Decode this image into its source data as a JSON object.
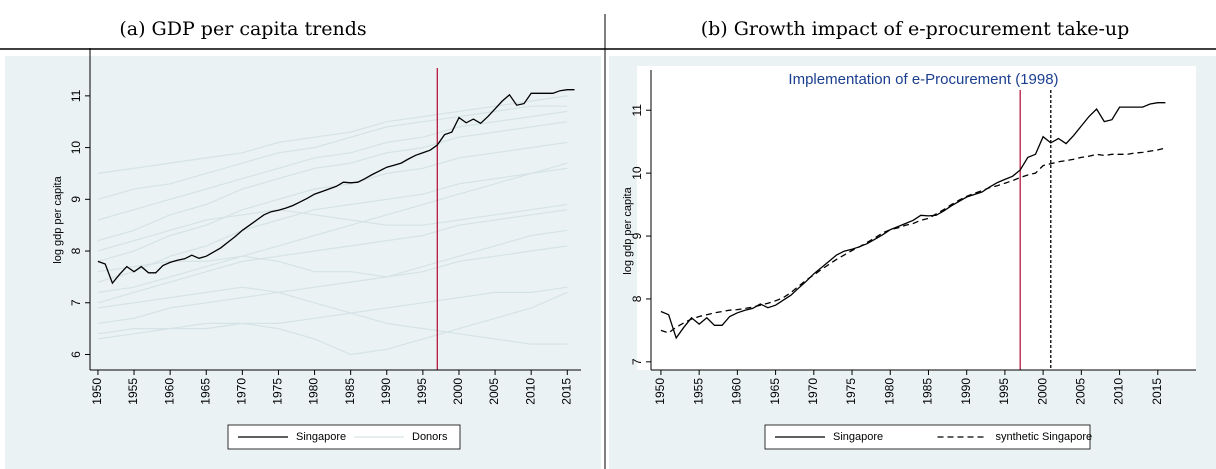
{
  "chart_data": [
    {
      "type": "line",
      "title": "(a) GDP per capita trends",
      "ylabel": "log gdp per capita",
      "x": [
        1950,
        1951,
        1952,
        1953,
        1954,
        1955,
        1956,
        1957,
        1958,
        1959,
        1960,
        1961,
        1962,
        1963,
        1964,
        1965,
        1966,
        1967,
        1968,
        1969,
        1970,
        1971,
        1972,
        1973,
        1974,
        1975,
        1976,
        1977,
        1978,
        1979,
        1980,
        1981,
        1982,
        1983,
        1984,
        1985,
        1986,
        1987,
        1988,
        1989,
        1990,
        1991,
        1992,
        1993,
        1994,
        1995,
        1996,
        1997,
        1998,
        1999,
        2000,
        2001,
        2002,
        2003,
        2004,
        2005,
        2006,
        2007,
        2008,
        2009,
        2010,
        2011,
        2012,
        2013,
        2014,
        2015,
        2016
      ],
      "series": [
        {
          "name": "Singapore",
          "color": "#000000",
          "values": [
            7.8,
            7.75,
            7.38,
            7.55,
            7.7,
            7.6,
            7.7,
            7.58,
            7.58,
            7.72,
            7.78,
            7.82,
            7.85,
            7.92,
            7.86,
            7.9,
            7.98,
            8.06,
            8.17,
            8.28,
            8.4,
            8.5,
            8.6,
            8.7,
            8.76,
            8.79,
            8.83,
            8.88,
            8.95,
            9.02,
            9.1,
            9.15,
            9.2,
            9.25,
            9.33,
            9.32,
            9.33,
            9.4,
            9.48,
            9.55,
            9.62,
            9.66,
            9.7,
            9.78,
            9.85,
            9.9,
            9.95,
            10.05,
            10.25,
            10.3,
            10.58,
            10.48,
            10.55,
            10.47,
            10.6,
            10.75,
            10.9,
            11.02,
            10.82,
            10.85,
            11.05,
            11.05,
            11.05,
            11.05,
            11.1,
            11.12,
            11.12
          ]
        }
      ],
      "donors": {
        "name": "Donors",
        "color": "#d6e3e6",
        "x": [
          1950,
          1955,
          1960,
          1965,
          1970,
          1975,
          1980,
          1985,
          1990,
          1995,
          2000,
          2005,
          2010,
          2015
        ],
        "lines": [
          [
            6.3,
            6.4,
            6.5,
            6.5,
            6.6,
            6.6,
            6.7,
            6.8,
            6.9,
            7.0,
            7.1,
            7.2,
            7.2,
            7.3
          ],
          [
            6.6,
            6.7,
            6.9,
            7.0,
            7.1,
            7.2,
            7.3,
            7.4,
            7.5,
            7.6,
            7.8,
            7.9,
            8.0,
            8.1
          ],
          [
            7.0,
            7.2,
            7.4,
            7.6,
            7.8,
            7.9,
            8.0,
            8.1,
            8.2,
            8.3,
            8.5,
            8.6,
            8.7,
            8.8
          ],
          [
            7.4,
            7.6,
            7.9,
            8.1,
            8.4,
            8.6,
            8.8,
            8.9,
            9.0,
            9.1,
            9.3,
            9.4,
            9.5,
            9.6
          ],
          [
            7.8,
            8.0,
            8.3,
            8.5,
            8.8,
            9.0,
            9.2,
            9.3,
            9.5,
            9.6,
            9.8,
            9.9,
            10.0,
            10.1
          ],
          [
            8.2,
            8.4,
            8.7,
            8.9,
            9.2,
            9.4,
            9.6,
            9.7,
            9.9,
            10.0,
            10.2,
            10.3,
            10.4,
            10.5
          ],
          [
            8.6,
            8.8,
            9.0,
            9.2,
            9.4,
            9.6,
            9.8,
            9.9,
            10.1,
            10.2,
            10.4,
            10.5,
            10.6,
            10.7
          ],
          [
            9.0,
            9.2,
            9.3,
            9.5,
            9.7,
            9.9,
            10.0,
            10.2,
            10.4,
            10.5,
            10.6,
            10.7,
            10.8,
            10.8
          ],
          [
            9.5,
            9.6,
            9.7,
            9.8,
            9.9,
            10.1,
            10.2,
            10.3,
            10.5,
            10.6,
            10.7,
            10.8,
            10.9,
            11.0
          ],
          [
            6.9,
            7.0,
            7.1,
            7.2,
            7.3,
            7.2,
            7.0,
            6.8,
            6.6,
            6.5,
            6.4,
            6.3,
            6.2,
            6.2
          ],
          [
            7.6,
            7.7,
            7.8,
            7.8,
            7.9,
            7.8,
            7.6,
            7.6,
            7.5,
            7.7,
            7.9,
            8.1,
            8.3,
            8.4
          ],
          [
            8.0,
            8.2,
            8.4,
            8.6,
            8.7,
            8.8,
            8.7,
            8.6,
            8.5,
            8.5,
            8.6,
            8.7,
            8.8,
            8.9
          ],
          [
            6.4,
            6.5,
            6.5,
            6.6,
            6.6,
            6.5,
            6.3,
            6.0,
            6.1,
            6.3,
            6.5,
            6.7,
            6.9,
            7.2
          ],
          [
            7.2,
            7.3,
            7.5,
            7.7,
            7.9,
            8.1,
            8.3,
            8.5,
            8.7,
            8.9,
            9.1,
            9.3,
            9.5,
            9.7
          ]
        ]
      },
      "vlines": [
        {
          "x": 1997,
          "color": "#b5173f"
        }
      ],
      "xlim": [
        1948.9,
        2016.9
      ],
      "ylim": [
        5.7,
        11.5
      ],
      "xticks": [
        1950,
        1955,
        1960,
        1965,
        1970,
        1975,
        1980,
        1985,
        1990,
        1995,
        2000,
        2005,
        2010,
        2015
      ],
      "yticks": [
        6,
        7,
        8,
        9,
        10,
        11
      ],
      "legend": "bottom"
    },
    {
      "type": "line",
      "title": "(b) Growth impact of e-procurement take-up",
      "subtitle": "Implementation of e-Procurement (1998)",
      "ylabel": "log gdp per capita",
      "x": [
        1950,
        1951,
        1952,
        1953,
        1954,
        1955,
        1956,
        1957,
        1958,
        1959,
        1960,
        1961,
        1962,
        1963,
        1964,
        1965,
        1966,
        1967,
        1968,
        1969,
        1970,
        1971,
        1972,
        1973,
        1974,
        1975,
        1976,
        1977,
        1978,
        1979,
        1980,
        1981,
        1982,
        1983,
        1984,
        1985,
        1986,
        1987,
        1988,
        1989,
        1990,
        1991,
        1992,
        1993,
        1994,
        1995,
        1996,
        1997,
        1998,
        1999,
        2000,
        2001,
        2002,
        2003,
        2004,
        2005,
        2006,
        2007,
        2008,
        2009,
        2010,
        2011,
        2012,
        2013,
        2014,
        2015,
        2016
      ],
      "series": [
        {
          "name": "Singapore",
          "color": "#000000",
          "values": [
            7.8,
            7.75,
            7.38,
            7.55,
            7.7,
            7.6,
            7.7,
            7.58,
            7.58,
            7.72,
            7.78,
            7.82,
            7.85,
            7.92,
            7.86,
            7.9,
            7.98,
            8.06,
            8.17,
            8.28,
            8.4,
            8.5,
            8.6,
            8.7,
            8.76,
            8.79,
            8.83,
            8.88,
            8.95,
            9.02,
            9.1,
            9.15,
            9.2,
            9.25,
            9.33,
            9.32,
            9.33,
            9.4,
            9.48,
            9.55,
            9.62,
            9.66,
            9.7,
            9.78,
            9.85,
            9.9,
            9.95,
            10.05,
            10.25,
            10.3,
            10.58,
            10.48,
            10.55,
            10.47,
            10.6,
            10.75,
            10.9,
            11.02,
            10.82,
            10.85,
            11.05,
            11.05,
            11.05,
            11.05,
            11.1,
            11.12,
            11.12
          ]
        },
        {
          "name": "synthetic Singapore",
          "color": "#000000",
          "dash": true,
          "values": [
            7.5,
            7.46,
            7.55,
            7.62,
            7.68,
            7.72,
            7.75,
            7.78,
            7.8,
            7.82,
            7.83,
            7.85,
            7.87,
            7.9,
            7.93,
            7.97,
            8.02,
            8.1,
            8.2,
            8.3,
            8.38,
            8.47,
            8.55,
            8.63,
            8.7,
            8.77,
            8.83,
            8.9,
            8.97,
            9.05,
            9.1,
            9.13,
            9.17,
            9.2,
            9.25,
            9.28,
            9.35,
            9.42,
            9.5,
            9.57,
            9.63,
            9.68,
            9.72,
            9.77,
            9.8,
            9.84,
            9.88,
            9.93,
            9.97,
            10.0,
            10.12,
            10.15,
            10.18,
            10.2,
            10.22,
            10.25,
            10.27,
            10.3,
            10.28,
            10.3,
            10.3,
            10.3,
            10.32,
            10.33,
            10.35,
            10.37,
            10.4
          ]
        }
      ],
      "vlines": [
        {
          "x": 1997,
          "color": "#b5173f"
        },
        {
          "x": 2001,
          "color": "#000000",
          "dash": true
        }
      ],
      "xlim": [
        1948.7,
        2020
      ],
      "ylim": [
        6.87,
        11.29
      ],
      "xticks": [
        1950,
        1955,
        1960,
        1965,
        1970,
        1975,
        1980,
        1985,
        1990,
        1995,
        2000,
        2005,
        2010,
        2015
      ],
      "yticks": [
        7,
        8,
        9,
        10,
        11
      ],
      "legend": "bottom"
    }
  ]
}
